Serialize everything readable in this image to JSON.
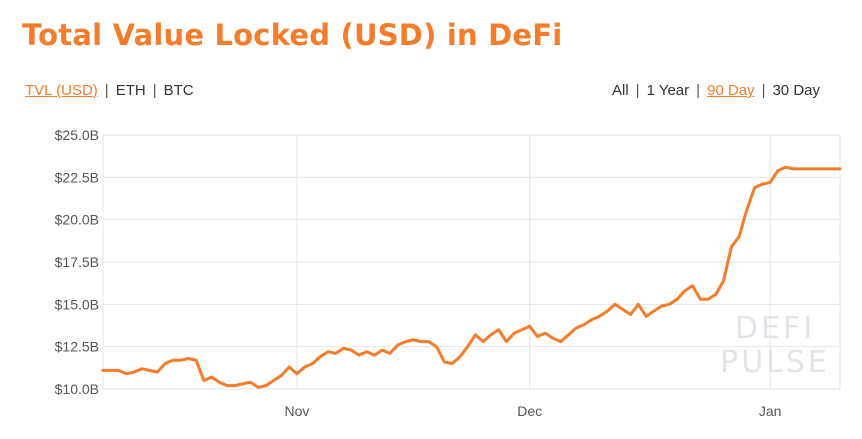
{
  "header": {
    "title": "Total Value Locked (USD) in DeFi"
  },
  "units": {
    "items": [
      "TVL (USD)",
      "ETH",
      "BTC"
    ],
    "active": 0
  },
  "ranges": {
    "items": [
      "All",
      "1 Year",
      "90 Day",
      "30 Day"
    ],
    "active": 2
  },
  "watermark": [
    "DEFI",
    "PULSE"
  ],
  "colors": {
    "accent": "#f47c2a",
    "grid": "#e6e6e6"
  },
  "chart_data": {
    "type": "line",
    "title": "Total Value Locked (USD) in DeFi",
    "xlabel": "",
    "ylabel": "",
    "ylim": [
      10.0,
      25.0
    ],
    "y_ticks": [
      10.0,
      12.5,
      15.0,
      17.5,
      20.0,
      22.5,
      25.0
    ],
    "y_tick_labels": [
      "$10.0B",
      "$12.5B",
      "$15.0B",
      "$17.5B",
      "$20.0B",
      "$22.5B",
      "$25.0B"
    ],
    "x_ticks": [
      {
        "label": "Nov",
        "x": 25
      },
      {
        "label": "Dec",
        "x": 55
      },
      {
        "label": "Jan",
        "x": 86
      }
    ],
    "xlim": [
      0,
      95
    ],
    "grid": true,
    "legend": "none",
    "series": [
      {
        "color": "#f47c2a",
        "x": [
          0,
          1,
          2,
          3,
          4,
          5,
          6,
          7,
          8,
          9,
          10,
          11,
          12,
          13,
          14,
          15,
          16,
          17,
          18,
          19,
          20,
          21,
          22,
          23,
          24,
          25,
          26,
          27,
          28,
          29,
          30,
          31,
          32,
          33,
          34,
          35,
          36,
          37,
          38,
          39,
          40,
          41,
          42,
          43,
          44,
          45,
          46,
          47,
          48,
          49,
          50,
          51,
          52,
          53,
          54,
          55,
          56,
          57,
          58,
          59,
          60,
          61,
          62,
          63,
          64,
          65,
          66,
          67,
          68,
          69,
          70,
          71,
          72,
          73,
          74,
          75,
          76,
          77,
          78,
          79,
          80,
          81,
          82,
          83,
          84,
          85,
          86,
          87,
          88,
          89,
          90,
          91,
          92,
          93,
          94,
          95
        ],
        "y": [
          11.1,
          11.1,
          11.1,
          10.9,
          11.0,
          11.2,
          11.1,
          11.0,
          11.5,
          11.7,
          11.7,
          11.8,
          11.7,
          10.5,
          10.7,
          10.4,
          10.2,
          10.2,
          10.3,
          10.4,
          10.1,
          10.2,
          10.5,
          10.8,
          11.3,
          10.9,
          11.3,
          11.5,
          11.9,
          12.2,
          12.1,
          12.4,
          12.3,
          12.0,
          12.2,
          12.0,
          12.3,
          12.1,
          12.6,
          12.8,
          12.9,
          12.8,
          12.8,
          12.5,
          11.6,
          11.5,
          11.9,
          12.5,
          13.2,
          12.8,
          13.2,
          13.5,
          12.8,
          13.3,
          13.5,
          13.7,
          13.1,
          13.3,
          13.0,
          12.8,
          13.2,
          13.6,
          13.8,
          14.1,
          14.3,
          14.6,
          15.0,
          14.7,
          14.4,
          15.0,
          14.3,
          14.6,
          14.9,
          15.0,
          15.3,
          15.8,
          16.1,
          15.3,
          15.3,
          15.6,
          16.4,
          18.4,
          19.0,
          20.6,
          21.9,
          22.1,
          22.2,
          22.9,
          23.1,
          23.0,
          23.0,
          23.0,
          23.0,
          23.0,
          23.0,
          23.0
        ]
      }
    ]
  }
}
